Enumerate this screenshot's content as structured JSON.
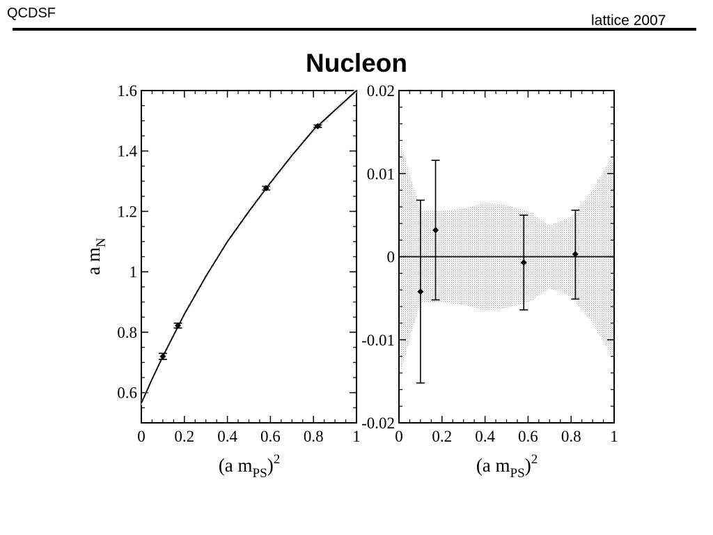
{
  "header": {
    "left": "QCDSF",
    "right": "lattice 2007"
  },
  "slide_title": "Nucleon",
  "chart_data": [
    {
      "type": "line",
      "xlabel": {
        "text": "(a m",
        "sub": "PS",
        "close": ")",
        "sup": "2"
      },
      "ylabel": {
        "text": "a m",
        "sub": "N"
      },
      "xlim": [
        0,
        1
      ],
      "ylim": [
        0.5,
        1.6
      ],
      "xticks": [
        0,
        0.2,
        0.4,
        0.6,
        0.8,
        1
      ],
      "xtick_labels": [
        "0",
        "0.2",
        "0.4",
        "0.6",
        "0.8",
        "1"
      ],
      "yticks": [
        0.6,
        0.8,
        1.0,
        1.2,
        1.4,
        1.6
      ],
      "ytick_labels": [
        "0.6",
        "0.8",
        "1",
        "1.2",
        "1.4",
        "1.6"
      ],
      "fit_curve": {
        "x": [
          0,
          0.05,
          0.1,
          0.15,
          0.2,
          0.3,
          0.4,
          0.5,
          0.6,
          0.7,
          0.8,
          0.9,
          1.0
        ],
        "y": [
          0.565,
          0.645,
          0.72,
          0.79,
          0.86,
          0.985,
          1.1,
          1.2,
          1.295,
          1.385,
          1.47,
          1.535,
          1.6
        ]
      },
      "points": [
        {
          "x": 0.1,
          "y": 0.72,
          "err": 0.01
        },
        {
          "x": 0.17,
          "y": 0.822,
          "err": 0.008
        },
        {
          "x": 0.58,
          "y": 1.277,
          "err": 0.006
        },
        {
          "x": 0.82,
          "y": 1.482,
          "err": 0.004
        }
      ]
    },
    {
      "type": "scatter",
      "xlabel": {
        "text": "(a m",
        "sub": "PS",
        "close": ")",
        "sup": "2"
      },
      "xlim": [
        0,
        1
      ],
      "ylim": [
        -0.02,
        0.02
      ],
      "xticks": [
        0,
        0.2,
        0.4,
        0.6,
        0.8,
        1
      ],
      "xtick_labels": [
        "0",
        "0.2",
        "0.4",
        "0.6",
        "0.8",
        "1"
      ],
      "yticks": [
        -0.02,
        -0.01,
        0,
        0.01,
        0.02
      ],
      "ytick_labels": [
        "-0.02",
        "-0.01",
        "0",
        "0.01",
        "0.02"
      ],
      "zero_line": 0,
      "error_band": {
        "x": [
          0,
          0.1,
          0.2,
          0.3,
          0.4,
          0.5,
          0.6,
          0.7,
          0.8,
          0.9,
          1.0
        ],
        "upper": [
          0.0145,
          0.0055,
          0.0055,
          0.0058,
          0.0065,
          0.0062,
          0.0055,
          0.0038,
          0.0048,
          0.008,
          0.0125
        ],
        "lower": [
          -0.0145,
          -0.0055,
          -0.0055,
          -0.0058,
          -0.0065,
          -0.0062,
          -0.0055,
          -0.0038,
          -0.0048,
          -0.008,
          -0.0125
        ]
      },
      "points": [
        {
          "x": 0.1,
          "y": -0.0042,
          "lo": -0.0152,
          "hi": 0.0068
        },
        {
          "x": 0.17,
          "y": 0.0032,
          "lo": -0.0052,
          "hi": 0.0116
        },
        {
          "x": 0.58,
          "y": -0.0007,
          "lo": -0.0064,
          "hi": 0.005
        },
        {
          "x": 0.82,
          "y": 0.0003,
          "lo": -0.0051,
          "hi": 0.0056
        }
      ]
    }
  ]
}
